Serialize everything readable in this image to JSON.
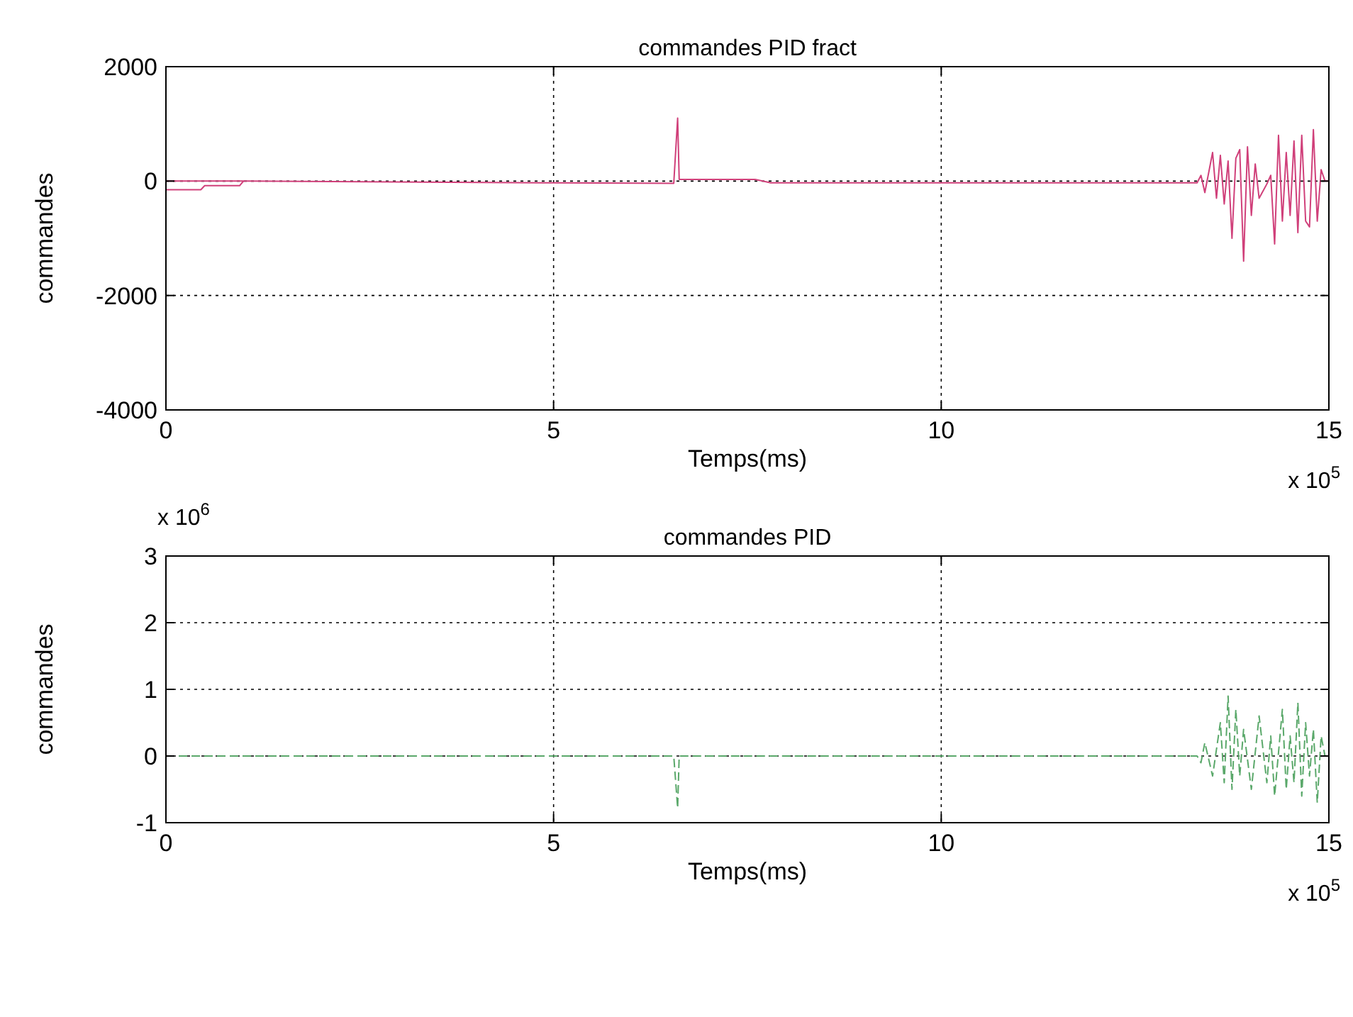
{
  "chart_data": [
    {
      "type": "line",
      "title": "commandes PID fract",
      "xlabel": "Temps(ms)",
      "ylabel": "commandes",
      "annotations": [
        "x 10$^{5}$"
      ],
      "xlim": [
        0,
        15
      ],
      "xticks": [
        0,
        5,
        10,
        15
      ],
      "ylim": [
        -4000,
        2000
      ],
      "yticks": [
        -4000,
        -2000,
        0,
        2000
      ],
      "grid": true,
      "line_style": "solid",
      "series": [
        {
          "color": "#d0407a",
          "x": [
            0,
            1,
            5,
            6.55,
            6.6,
            6.62,
            7,
            7.6,
            7.8,
            10,
            13.3,
            13.35,
            13.4,
            13.5,
            13.55,
            13.6,
            13.65,
            13.7,
            13.75,
            13.8,
            13.85,
            13.9,
            13.95,
            14,
            14.05,
            14.1,
            14.2,
            14.25,
            14.3,
            14.35,
            14.4,
            14.45,
            14.5,
            14.55,
            14.6,
            14.65,
            14.7,
            14.75,
            14.8,
            14.85,
            14.9,
            14.95,
            15
          ],
          "values": [
            0,
            0,
            -30,
            -40,
            1100,
            30,
            30,
            30,
            -30,
            -30,
            -30,
            100,
            -200,
            500,
            -300,
            450,
            -400,
            350,
            -1000,
            400,
            550,
            -1400,
            600,
            -600,
            300,
            -300,
            -50,
            100,
            -1100,
            800,
            -700,
            500,
            -600,
            700,
            -900,
            800,
            -700,
            -800,
            900,
            -700,
            200,
            0,
            0
          ]
        },
        {
          "color": "#d0407a",
          "x": [
            0,
            0.45,
            0.5,
            0.95,
            1
          ],
          "values": [
            -150,
            -150,
            -80,
            -80,
            0
          ]
        }
      ]
    },
    {
      "type": "line",
      "title": "commandes PID",
      "xlabel": "Temps(ms)",
      "ylabel": "commandes",
      "annotations": [
        "x 10$^{6}$",
        "x 10$^{5}$"
      ],
      "xlim": [
        0,
        15
      ],
      "xticks": [
        0,
        5,
        10,
        15
      ],
      "ylim": [
        -1,
        3
      ],
      "yticks": [
        -1,
        0,
        1,
        2,
        3
      ],
      "grid": true,
      "line_style": "dashed",
      "series": [
        {
          "color": "#5aa86a",
          "x": [
            0,
            6.55,
            6.6,
            6.62,
            13.3,
            13.35,
            13.4,
            13.5,
            13.6,
            13.65,
            13.7,
            13.75,
            13.8,
            13.85,
            13.9,
            14,
            14.1,
            14.2,
            14.25,
            14.3,
            14.4,
            14.45,
            14.5,
            14.55,
            14.6,
            14.65,
            14.7,
            14.75,
            14.8,
            14.85,
            14.9,
            14.95,
            15
          ],
          "values": [
            0,
            0,
            -0.78,
            0,
            0,
            -0.1,
            0.2,
            -0.3,
            0.5,
            -0.4,
            0.9,
            -0.5,
            0.7,
            -0.3,
            0.4,
            -0.5,
            0.6,
            -0.4,
            0.3,
            -0.6,
            0.7,
            -0.5,
            0.3,
            -0.4,
            0.8,
            -0.6,
            0.5,
            -0.3,
            0.4,
            -0.7,
            0.3,
            0,
            0
          ]
        }
      ]
    }
  ]
}
